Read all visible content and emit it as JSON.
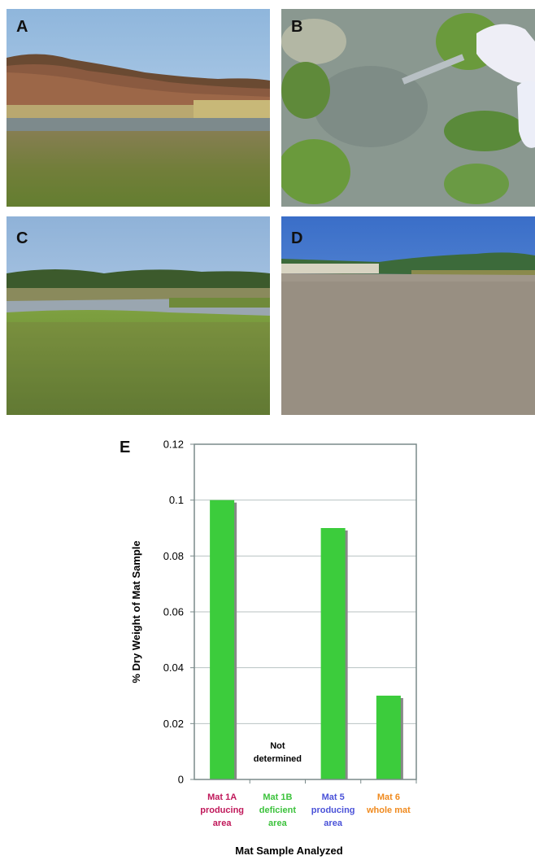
{
  "panels": {
    "a": {
      "letter": "A"
    },
    "b": {
      "letter": "B"
    },
    "c": {
      "letter": "C"
    },
    "d": {
      "letter": "D"
    },
    "e": {
      "letter": "E"
    }
  },
  "chart_data": {
    "type": "bar",
    "categories": [
      {
        "lines": [
          "Mat 1A",
          "producing",
          "area"
        ],
        "color": "#c0185a"
      },
      {
        "lines": [
          "Mat 1B",
          "deficient",
          "area"
        ],
        "color": "#3cc23c"
      },
      {
        "lines": [
          "Mat 5",
          "producing",
          "area"
        ],
        "color": "#4a52d8"
      },
      {
        "lines": [
          "Mat 6",
          "whole mat"
        ],
        "color": "#f08a1e"
      }
    ],
    "values": [
      0.1,
      null,
      0.09,
      0.03
    ],
    "bar_color": "#3ccc3c",
    "shadow_color": "#888888",
    "ylim": [
      0,
      0.12
    ],
    "yticks": [
      "0",
      "0.02",
      "0.04",
      "0.06",
      "0.08",
      "0.1",
      "0.12"
    ],
    "ylabel": "% Dry Weight of Mat Sample",
    "xlabel": "Mat Sample Analyzed",
    "grid": true,
    "annotation": [
      "Not",
      "determined"
    ]
  }
}
